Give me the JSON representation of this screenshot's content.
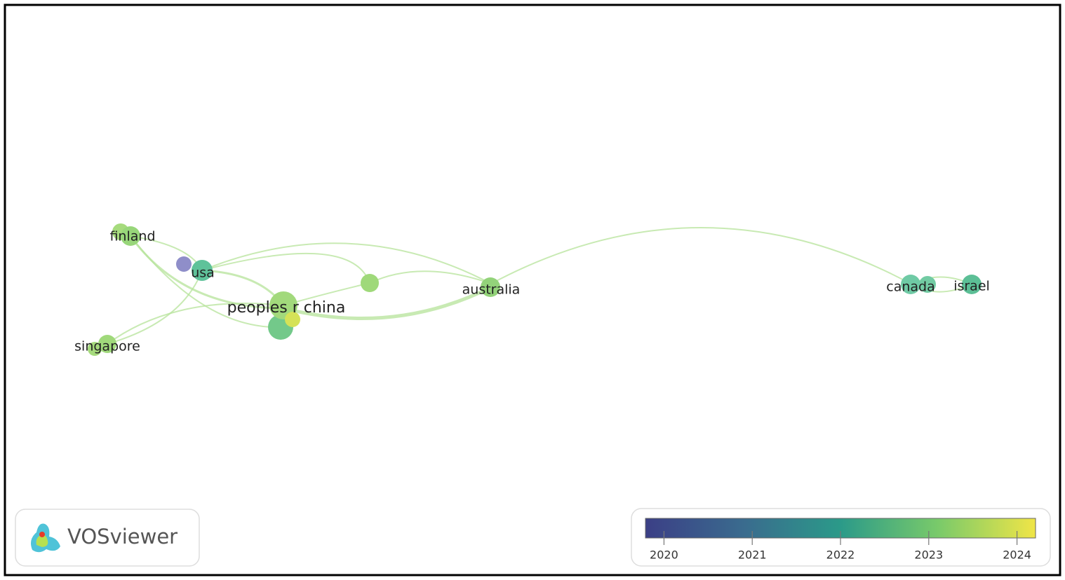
{
  "app": {
    "name": "VOSviewer"
  },
  "network": {
    "nodes": [
      {
        "label": "finland"
      },
      {
        "label": "usa"
      },
      {
        "label": "peoples r china"
      },
      {
        "label": "singapore"
      },
      {
        "label": "australia"
      },
      {
        "label": "canada"
      },
      {
        "label": "israel"
      }
    ]
  },
  "legend": {
    "lim": [
      2019.79,
      2024.21
    ],
    "ticks": [
      2020,
      2021,
      2022,
      2023,
      2024
    ]
  }
}
